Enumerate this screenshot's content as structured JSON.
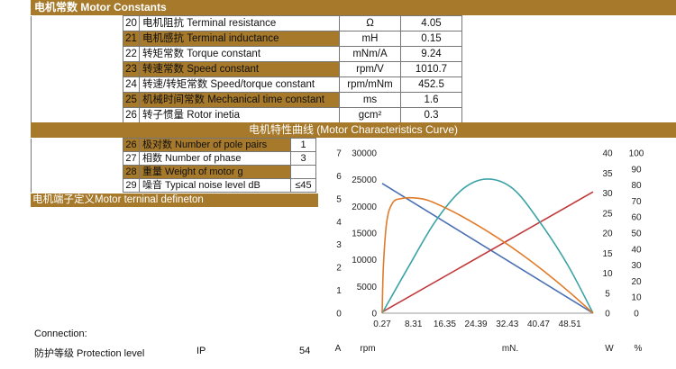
{
  "header": {
    "title": "电机常数 Motor Constants"
  },
  "params": [
    {
      "no": "20",
      "name": "电机阻抗 Terminal resistance",
      "unit": "Ω",
      "value": "4.05",
      "highlight": false
    },
    {
      "no": "21",
      "name": "电机感抗 Terminal inductance",
      "unit": "mH",
      "value": "0.15",
      "highlight": true
    },
    {
      "no": "22",
      "name": "转矩常数 Torque constant",
      "unit": "mNm/A",
      "value": "9.24",
      "highlight": false
    },
    {
      "no": "23",
      "name": "转速常数 Speed constant",
      "unit": "rpm/V",
      "value": "1010.7",
      "highlight": true
    },
    {
      "no": "24",
      "name": "转速/转矩常数 Speed/torque constant",
      "unit": "rpm/mNm",
      "value": "452.5",
      "highlight": false
    },
    {
      "no": "25",
      "name": "机械时间常数 Mechanical time constant",
      "unit": "ms",
      "value": "1.6",
      "highlight": true
    },
    {
      "no": "26",
      "name": "转子惯量 Rotor inetia",
      "unit": "gcm²",
      "value": "0.3",
      "highlight": false
    }
  ],
  "curve_title": "电机特性曲线 (Motor Characteristics Curve)",
  "sub_params": [
    {
      "no": "26",
      "name": "极对数 Number of pole pairs",
      "value": "1",
      "highlight": true
    },
    {
      "no": "27",
      "name": "相数  Number of phase",
      "value": "3",
      "highlight": false
    },
    {
      "no": "28",
      "name": "重量  Weight of motor  g",
      "value": "",
      "highlight": true
    },
    {
      "no": "29",
      "name": "噪音  Typical noise level dB",
      "value": "≤45",
      "highlight": false
    }
  ],
  "terminal_title": "电机端子定义Motor terninal defineton",
  "connection": "Connection:",
  "protection": {
    "label": "防护等级 Protection level",
    "code": "IP",
    "value": "54"
  },
  "chart_data": {
    "type": "line",
    "x_ticks": [
      "0.27",
      "8.31",
      "16.35",
      "24.39",
      "32.43",
      "40.47",
      "48.51"
    ],
    "xlim": [
      0.27,
      54.5
    ],
    "xlabel": "mN.",
    "axes": [
      {
        "label": "A",
        "ticks": [
          0,
          1,
          2,
          3,
          4,
          5,
          6,
          7
        ],
        "range": [
          0,
          7
        ]
      },
      {
        "label": "rpm",
        "ticks": [
          0,
          5000,
          10000,
          15000,
          20000,
          25000,
          30000
        ],
        "range": [
          0,
          30000
        ]
      },
      {
        "label": "W",
        "ticks": [
          0,
          5,
          10,
          15,
          20,
          25,
          30,
          35,
          40
        ],
        "range": [
          0,
          40
        ]
      },
      {
        "label": "%",
        "ticks": [
          0,
          10,
          20,
          30,
          40,
          50,
          60,
          70,
          80,
          90,
          100
        ],
        "range": [
          0,
          100
        ]
      }
    ],
    "series": [
      {
        "axis": "rpm",
        "color": "#4a6fb3",
        "x": [
          0.27,
          54.5
        ],
        "y": [
          24300,
          0
        ]
      },
      {
        "axis": "A",
        "color": "#c0393b",
        "x": [
          0.27,
          54.5
        ],
        "y": [
          0.05,
          5.3
        ]
      },
      {
        "axis": "W",
        "color": "#3ba3a6",
        "x": [
          0.27,
          7,
          14,
          21,
          27.4,
          34,
          41,
          48,
          54.5
        ],
        "y": [
          0,
          11.5,
          23,
          31,
          33.5,
          31,
          22.5,
          12,
          0
        ]
      },
      {
        "axis": "%",
        "color": "#e07b2a",
        "x": [
          0.27,
          0.6,
          1.5,
          3,
          5,
          8.31,
          12,
          18,
          24,
          30,
          36,
          42,
          48,
          54.5
        ],
        "y": [
          0,
          30,
          58,
          69,
          71.5,
          72,
          70.5,
          64,
          56,
          47,
          37,
          26,
          14,
          0
        ]
      }
    ]
  }
}
